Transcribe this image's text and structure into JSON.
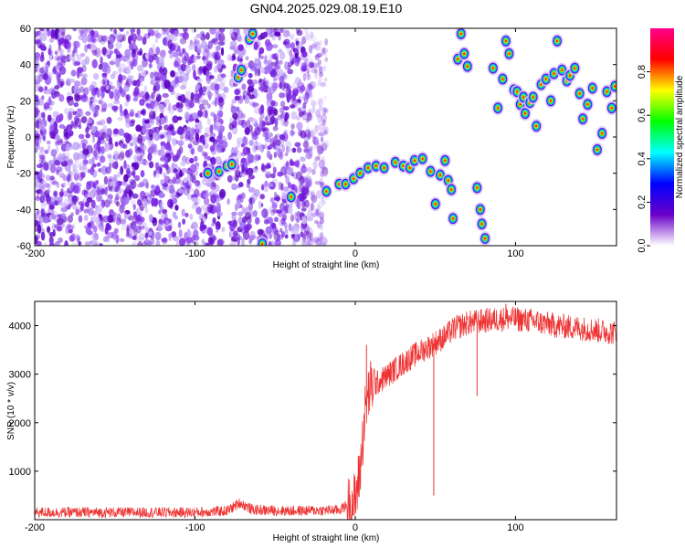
{
  "title": "GN04.2025.029.08.19.E10",
  "chart_data": [
    {
      "type": "heatmap",
      "title": "GN04.2025.029.08.19.E10",
      "xlabel": "Height of straight line (km)",
      "ylabel": "Frequency (Hz)",
      "xlim": [
        -200,
        163
      ],
      "ylim": [
        -60,
        60
      ],
      "x_ticks": [
        "-200",
        "-100",
        "0",
        "100"
      ],
      "x_tick_values": [
        -200,
        -100,
        0,
        100
      ],
      "y_ticks": [
        "-60",
        "-40",
        "-20",
        "0",
        "20",
        "40",
        "60"
      ],
      "y_tick_values": [
        -60,
        -40,
        -20,
        0,
        20,
        40,
        60
      ],
      "colorbar": {
        "label": "Normalized spectral amplitude",
        "range": [
          0,
          1
        ],
        "ticks": [
          "0.0",
          "0.2",
          "0.4",
          "0.6",
          "0.8"
        ],
        "tick_values": [
          0,
          0.2,
          0.4,
          0.6,
          0.8
        ],
        "colors": [
          "#ffffff",
          "#6a00c8",
          "#0000ff",
          "#00ffff",
          "#00ff00",
          "#ffff00",
          "#ff0000",
          "#ff0088"
        ]
      },
      "noise_region_x": [
        -200,
        -18
      ],
      "blobs": [
        {
          "x": -92,
          "y": -20
        },
        {
          "x": -85,
          "y": -19
        },
        {
          "x": -80,
          "y": -16
        },
        {
          "x": -77,
          "y": -15
        },
        {
          "x": -73,
          "y": 33
        },
        {
          "x": -71,
          "y": 37
        },
        {
          "x": -66,
          "y": 54
        },
        {
          "x": -64,
          "y": 57
        },
        {
          "x": -58,
          "y": -59
        },
        {
          "x": -40,
          "y": -33
        },
        {
          "x": -18,
          "y": -30
        },
        {
          "x": -10,
          "y": -26
        },
        {
          "x": -6,
          "y": -26
        },
        {
          "x": -1,
          "y": -23
        },
        {
          "x": 3,
          "y": -20
        },
        {
          "x": 8,
          "y": -17
        },
        {
          "x": 13,
          "y": -16
        },
        {
          "x": 18,
          "y": -17
        },
        {
          "x": 25,
          "y": -14
        },
        {
          "x": 30,
          "y": -16
        },
        {
          "x": 34,
          "y": -17
        },
        {
          "x": 37,
          "y": -13
        },
        {
          "x": 42,
          "y": -12
        },
        {
          "x": 47,
          "y": -19
        },
        {
          "x": 50,
          "y": -37
        },
        {
          "x": 53,
          "y": -21
        },
        {
          "x": 56,
          "y": -13
        },
        {
          "x": 58,
          "y": -24
        },
        {
          "x": 60,
          "y": -29
        },
        {
          "x": 61,
          "y": -45
        },
        {
          "x": 64,
          "y": 43
        },
        {
          "x": 66,
          "y": 57
        },
        {
          "x": 68,
          "y": 46
        },
        {
          "x": 70,
          "y": 39
        },
        {
          "x": 76,
          "y": -28
        },
        {
          "x": 78,
          "y": -40
        },
        {
          "x": 79,
          "y": -48
        },
        {
          "x": 81,
          "y": -56
        },
        {
          "x": 86,
          "y": 38
        },
        {
          "x": 89,
          "y": 16
        },
        {
          "x": 92,
          "y": 32
        },
        {
          "x": 94,
          "y": 53
        },
        {
          "x": 96,
          "y": 46
        },
        {
          "x": 99,
          "y": 26
        },
        {
          "x": 101,
          "y": 25
        },
        {
          "x": 103,
          "y": 18
        },
        {
          "x": 105,
          "y": 22
        },
        {
          "x": 106,
          "y": 13
        },
        {
          "x": 109,
          "y": 19
        },
        {
          "x": 111,
          "y": 22
        },
        {
          "x": 113,
          "y": 6
        },
        {
          "x": 116,
          "y": 29
        },
        {
          "x": 119,
          "y": 32
        },
        {
          "x": 122,
          "y": 20
        },
        {
          "x": 124,
          "y": 35
        },
        {
          "x": 126,
          "y": 53
        },
        {
          "x": 129,
          "y": 37
        },
        {
          "x": 132,
          "y": 31
        },
        {
          "x": 134,
          "y": 34
        },
        {
          "x": 137,
          "y": 38
        },
        {
          "x": 140,
          "y": 24
        },
        {
          "x": 142,
          "y": 10
        },
        {
          "x": 145,
          "y": 18
        },
        {
          "x": 148,
          "y": 27
        },
        {
          "x": 151,
          "y": -7
        },
        {
          "x": 154,
          "y": 2
        },
        {
          "x": 157,
          "y": 25
        },
        {
          "x": 160,
          "y": 16
        },
        {
          "x": 162,
          "y": 28
        }
      ]
    },
    {
      "type": "line",
      "xlabel": "Height of straight line (km)",
      "ylabel": "SNR (10 * v/v)",
      "xlim": [
        -200,
        163
      ],
      "ylim": [
        0,
        4500
      ],
      "x_ticks": [
        "-200",
        "-100",
        "0",
        "100"
      ],
      "x_tick_values": [
        -200,
        -100,
        0,
        100
      ],
      "y_ticks": [
        "1000",
        "2000",
        "3000",
        "4000"
      ],
      "y_tick_values": [
        1000,
        2000,
        3000,
        4000
      ],
      "line_color": "#ee3333",
      "envelope": [
        {
          "x": -200,
          "y": 150
        },
        {
          "x": -150,
          "y": 150
        },
        {
          "x": -100,
          "y": 150
        },
        {
          "x": -80,
          "y": 180
        },
        {
          "x": -72,
          "y": 350
        },
        {
          "x": -64,
          "y": 200
        },
        {
          "x": -40,
          "y": 180
        },
        {
          "x": -10,
          "y": 200
        },
        {
          "x": 0,
          "y": 400
        },
        {
          "x": 3,
          "y": 1000
        },
        {
          "x": 6,
          "y": 2200
        },
        {
          "x": 9,
          "y": 2700
        },
        {
          "x": 15,
          "y": 2850
        },
        {
          "x": 25,
          "y": 3100
        },
        {
          "x": 35,
          "y": 3350
        },
        {
          "x": 45,
          "y": 3550
        },
        {
          "x": 55,
          "y": 3750
        },
        {
          "x": 62,
          "y": 3950
        },
        {
          "x": 70,
          "y": 4050
        },
        {
          "x": 80,
          "y": 4100
        },
        {
          "x": 95,
          "y": 4150
        },
        {
          "x": 110,
          "y": 4100
        },
        {
          "x": 125,
          "y": 4000
        },
        {
          "x": 140,
          "y": 3950
        },
        {
          "x": 163,
          "y": 3850
        }
      ],
      "spikes": [
        {
          "x": 49,
          "y": 500
        },
        {
          "x": 76,
          "y": 2550
        },
        {
          "x": 7,
          "y": 3600
        },
        {
          "x": 94,
          "y": 4450
        }
      ]
    }
  ]
}
